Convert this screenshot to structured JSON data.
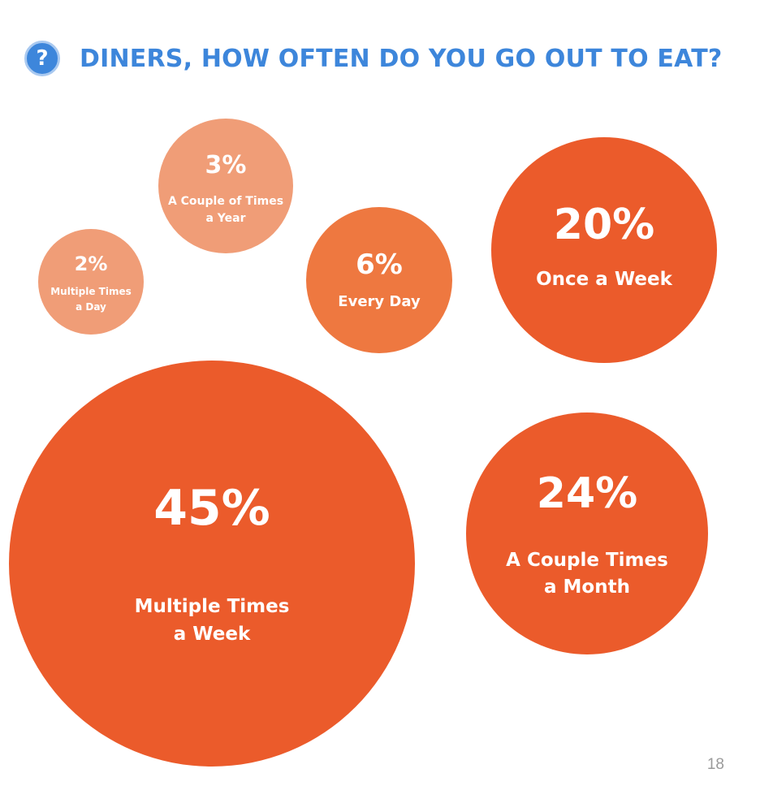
{
  "header": {
    "icon": "question-mark-icon",
    "icon_glyph": "?",
    "title": "DINERS, HOW OFTEN DO YOU GO OUT TO EAT?"
  },
  "page_number": "18",
  "colors": {
    "title_blue": "#3d86db",
    "light": "#f09d77",
    "medium": "#ee7840",
    "dark": "#eb5b2b"
  },
  "chart_data": {
    "type": "bubble",
    "title": "DINERS, HOW OFTEN DO YOU GO OUT TO EAT?",
    "unit": "%",
    "items": [
      {
        "label": "Multiple Times a Day",
        "label_lines": [
          "Multiple Times",
          "a Day"
        ],
        "value": 2,
        "value_label": "2%",
        "color": "#f09d77"
      },
      {
        "label": "A Couple of Times a Year",
        "label_lines": [
          "A Couple of Times",
          "a Year"
        ],
        "value": 3,
        "value_label": "3%",
        "color": "#f09d77"
      },
      {
        "label": "Every Day",
        "label_lines": [
          "Every Day"
        ],
        "value": 6,
        "value_label": "6%",
        "color": "#ee7840"
      },
      {
        "label": "Once a Week",
        "label_lines": [
          "Once a Week"
        ],
        "value": 20,
        "value_label": "20%",
        "color": "#eb5b2b"
      },
      {
        "label": "Multiple Times a Week",
        "label_lines": [
          "Multiple Times",
          "a Week"
        ],
        "value": 45,
        "value_label": "45%",
        "color": "#eb5b2b"
      },
      {
        "label": "A Couple Times a Month",
        "label_lines": [
          "A Couple Times",
          "a Month"
        ],
        "value": 24,
        "value_label": "24%",
        "color": "#eb5b2b"
      }
    ]
  }
}
